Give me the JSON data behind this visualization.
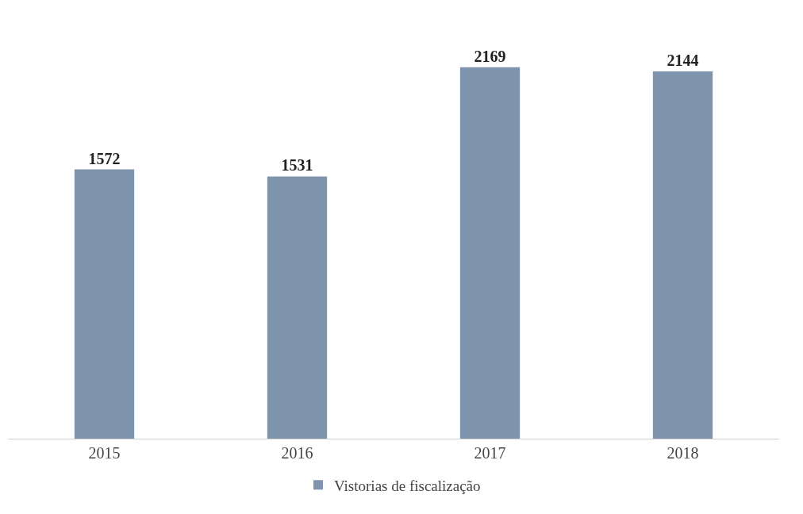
{
  "chart_data": {
    "type": "bar",
    "categories": [
      "2015",
      "2016",
      "2017",
      "2018"
    ],
    "series": [
      {
        "name": "Vistorias de fiscalização",
        "color": "#7f95ad",
        "values": [
          1572,
          1531,
          2169,
          2144
        ]
      }
    ],
    "data_labels": true,
    "grid": false,
    "legend": "bottom",
    "tick_labels": "x"
  }
}
